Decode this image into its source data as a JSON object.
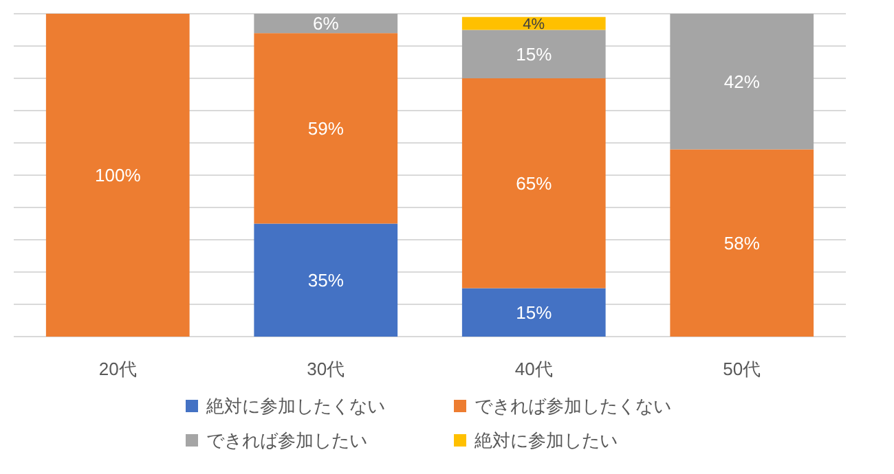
{
  "chart_data": {
    "type": "bar",
    "stacked": true,
    "grid": "y",
    "legend": "bottom",
    "tick_labels": "x",
    "categories": [
      "20代",
      "30代",
      "40代",
      "50代"
    ],
    "series": [
      {
        "name": "絶対に参加したくない",
        "color": "#4472c4",
        "values": [
          null,
          35,
          15,
          null
        ],
        "value_labels": [
          null,
          "35%",
          "15%",
          null
        ]
      },
      {
        "name": "できれば参加したくない",
        "color": "#ed7d31",
        "values": [
          100,
          59,
          65,
          58
        ],
        "value_labels": [
          "100%",
          "59%",
          "65%",
          "58%"
        ]
      },
      {
        "name": "できれば参加したい",
        "color": "#a5a5a5",
        "values": [
          null,
          6,
          15,
          42
        ],
        "value_labels": [
          null,
          "6%",
          "15%",
          "42%"
        ]
      },
      {
        "name": "絶対に参加したい",
        "color": "#ffc000",
        "values": [
          null,
          null,
          4,
          null
        ],
        "value_labels": [
          null,
          null,
          "4%",
          null
        ]
      }
    ]
  }
}
